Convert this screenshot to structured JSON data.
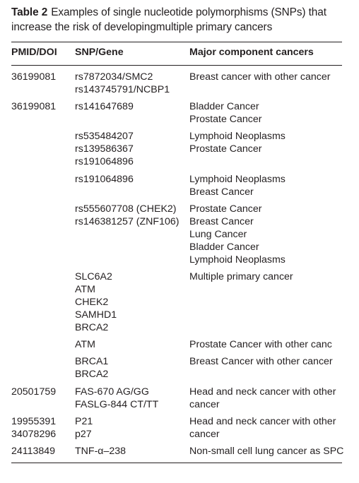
{
  "caption": {
    "label": "Table 2",
    "text": "Examples of single nucleotide polymorphisms (SNPs) that increase the risk of developingmultiple primary cancers"
  },
  "headers": {
    "pmid": "PMID/DOI",
    "snp": "SNP/Gene",
    "cancers": "Major component cancers"
  },
  "rows": [
    {
      "pmid": [
        "36199081"
      ],
      "snp": [
        "rs7872034/SMC2",
        "rs143745791/NCBP1"
      ],
      "cancers": [
        "Breast cancer with other cancer"
      ]
    },
    {
      "pmid": [
        "36199081"
      ],
      "snp": [
        "rs141647689"
      ],
      "cancers": [
        "Bladder Cancer",
        "Prostate Cancer"
      ]
    },
    {
      "pmid": [],
      "snp": [
        "rs535484207",
        "rs139586367",
        "rs191064896"
      ],
      "cancers": [
        "Lymphoid Neoplasms",
        "Prostate Cancer"
      ]
    },
    {
      "pmid": [],
      "snp": [
        "rs191064896"
      ],
      "cancers": [
        "Lymphoid Neoplasms",
        "Breast Cancer"
      ]
    },
    {
      "pmid": [],
      "snp": [
        "rs555607708 (CHEK2)",
        "rs146381257 (ZNF106)"
      ],
      "cancers": [
        "Prostate Cancer",
        "Breast Cancer",
        "Lung Cancer",
        "Bladder Cancer",
        "Lymphoid Neoplasms"
      ]
    },
    {
      "pmid": [],
      "snp": [
        "SLC6A2",
        "ATM",
        "CHEK2",
        "SAMHD1",
        "BRCA2"
      ],
      "cancers": [
        "Multiple primary cancer"
      ]
    },
    {
      "pmid": [],
      "snp": [
        "ATM"
      ],
      "cancers": [
        "Prostate Cancer with other canc"
      ]
    },
    {
      "pmid": [],
      "snp": [
        "BRCA1",
        "BRCA2"
      ],
      "cancers": [
        "Breast Cancer with other cancer"
      ]
    },
    {
      "pmid": [
        "20501759"
      ],
      "snp": [
        "FAS-670 AG/GG",
        "FASLG-844 CT/TT"
      ],
      "cancers": [
        "Head and neck cancer with other",
        "cancer"
      ]
    },
    {
      "pmid": [
        "19955391",
        "34078296"
      ],
      "snp": [
        "P21",
        "p27"
      ],
      "cancers": [
        "Head and neck cancer with other",
        "cancer"
      ]
    },
    {
      "pmid": [
        "24113849"
      ],
      "snp": [
        "TNF-α–238"
      ],
      "cancers": [
        "Non-small cell lung cancer as SPC"
      ]
    }
  ]
}
